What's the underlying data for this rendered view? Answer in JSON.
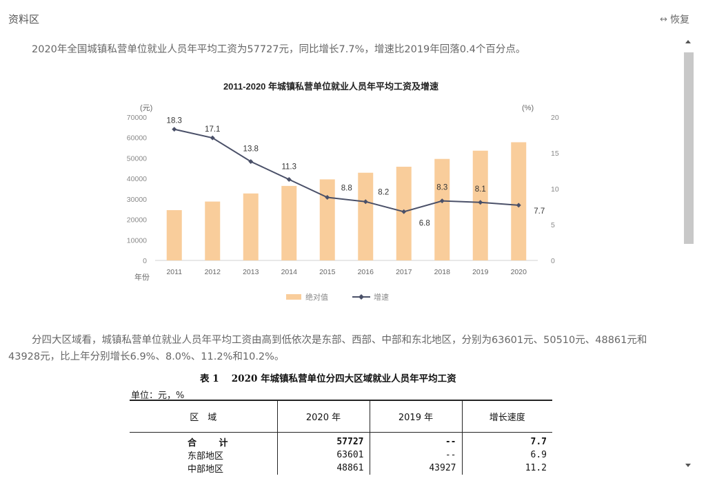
{
  "header": {
    "title": "资料区",
    "restore_label": "恢复",
    "restore_icon": "expand-arrows-icon"
  },
  "paragraphs": {
    "p1": "2020年全国城镇私营单位就业人员年平均工资为57727元，同比增长7.7%，增速比2019年回落0.4个百分点。",
    "p2": "分四大区域看，城镇私营单位就业人员年平均工资由高到低依次是东部、西部、中部和东北地区，分别为63601元、50510元、48861元和43928元，比上年分别增长6.9%、8.0%、11.2%和10.2%。"
  },
  "chart_data": {
    "type": "bar",
    "title": "2011-2020 年城镇私营单位就业人员年平均工资及增速",
    "categories": [
      "2011",
      "2012",
      "2013",
      "2014",
      "2015",
      "2016",
      "2017",
      "2018",
      "2019",
      "2020"
    ],
    "xlabel": "年份",
    "left_axis": {
      "unit": "(元)",
      "ylim": [
        0,
        70000
      ],
      "ticks": [
        "0",
        "10000",
        "20000",
        "30000",
        "40000",
        "50000",
        "60000",
        "70000"
      ]
    },
    "right_axis": {
      "unit": "(%)",
      "ylim": [
        0,
        20
      ],
      "ticks": [
        "0",
        "5",
        "10",
        "15",
        "20"
      ]
    },
    "series": [
      {
        "name": "绝对值",
        "type": "bar",
        "axis": "left",
        "color": "#f9cd9b",
        "values": [
          24556,
          28752,
          32706,
          36390,
          39589,
          42833,
          45761,
          49575,
          53604,
          57727
        ]
      },
      {
        "name": "增速",
        "type": "line",
        "axis": "right",
        "color": "#4a5068",
        "values": [
          18.3,
          17.1,
          13.8,
          11.3,
          8.8,
          8.2,
          6.8,
          8.3,
          8.1,
          7.7
        ],
        "labels": [
          "18.3",
          "17.1",
          "13.8",
          "11.3",
          "8.8",
          "8.2",
          "6.8",
          "8.3",
          "8.1",
          "7.7"
        ]
      }
    ],
    "legend": "bottom",
    "grid": false
  },
  "table": {
    "title": "表 1　 2020 年城镇私营单位分四大区域就业人员年平均工资",
    "unit": "单位：元，%",
    "headers": [
      "区　域",
      "2020 年",
      "2019 年",
      "增长速度"
    ],
    "rows": [
      [
        "合 计",
        "57727",
        "--",
        "7.7"
      ],
      [
        "东部地区",
        "63601",
        "--",
        "6.9"
      ],
      [
        "中部地区",
        "48861",
        "43927",
        "11.2"
      ]
    ]
  }
}
